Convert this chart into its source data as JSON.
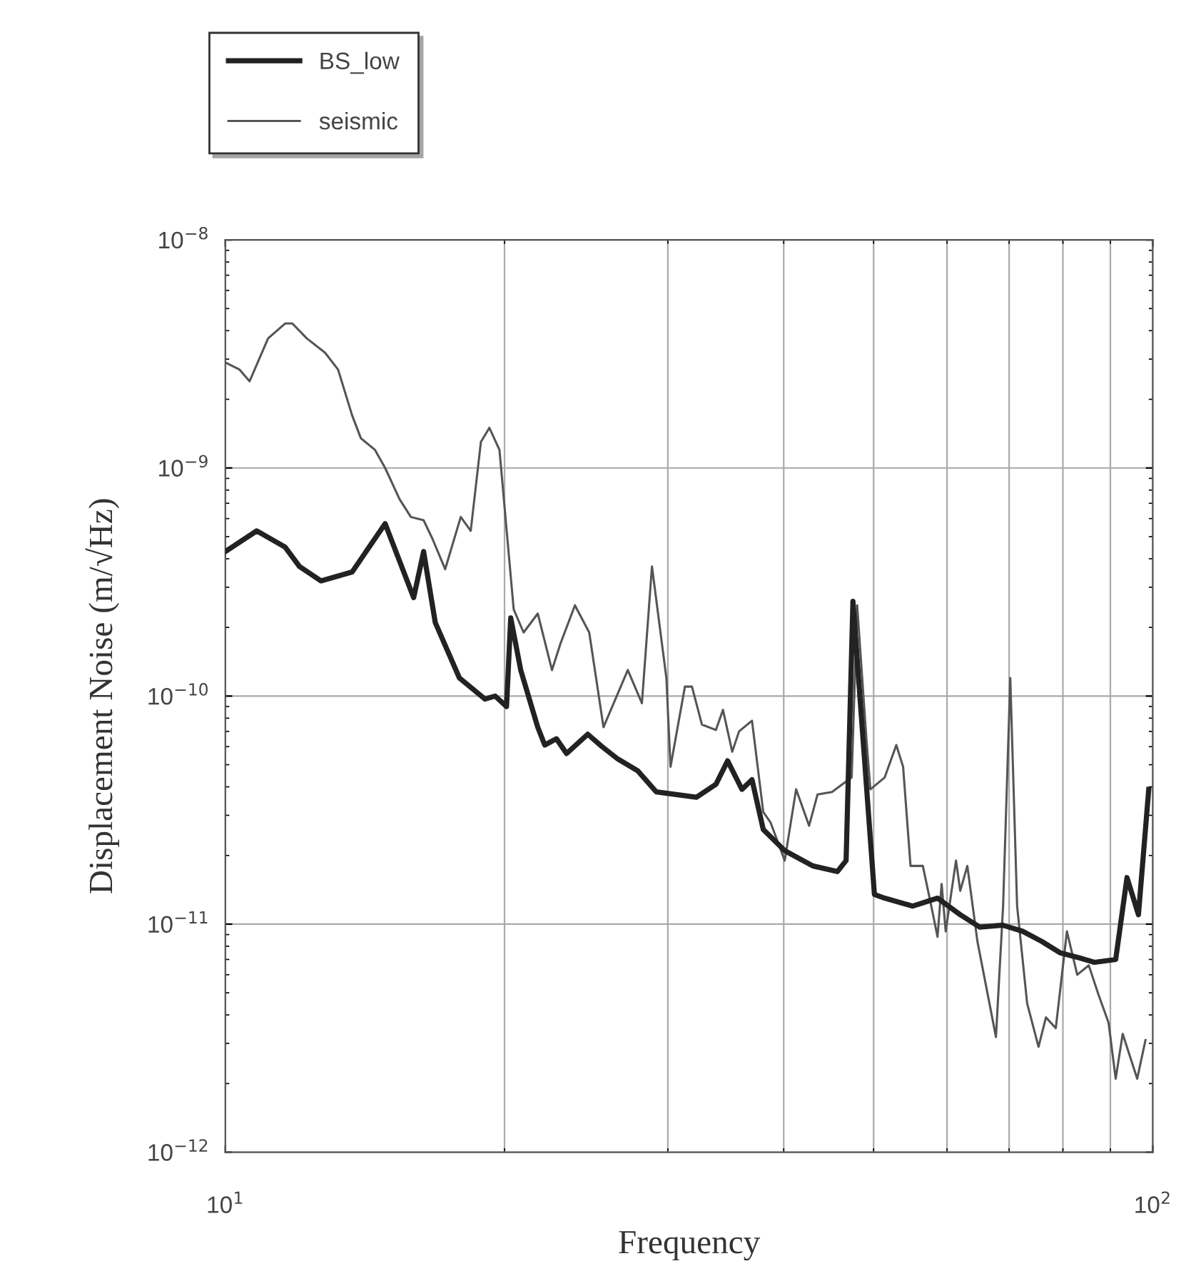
{
  "chart_data": {
    "type": "line",
    "xlabel": "Frequency",
    "ylabel": "Displacement Noise (m/√Hz)",
    "log": "xy",
    "grid": true,
    "legend": "top left",
    "xlim": [
      10,
      100
    ],
    "ylim": [
      1e-12,
      1e-08
    ],
    "xticks": [
      {
        "value": 10,
        "label": "10$^{1}$"
      },
      {
        "value": 100,
        "label": "10$^{2}$"
      }
    ],
    "yticks": [
      {
        "value": 1e-12,
        "label": "10$^{−12}$"
      },
      {
        "value": 1e-11,
        "label": "10$^{−11}$"
      },
      {
        "value": 1e-10,
        "label": "10$^{−10}$"
      },
      {
        "value": 1e-09,
        "label": "10$^{−9}$"
      },
      {
        "value": 1e-08,
        "label": "10$^{−8}$"
      }
    ],
    "series": [
      {
        "name": "BS_low",
        "color": "#222222",
        "x": [
          10.0,
          10.81,
          11.6,
          12.02,
          12.68,
          13.7,
          14.87,
          15.96,
          16.36,
          16.84,
          17.88,
          19.05,
          19.54,
          20.1,
          20.31,
          20.82,
          21.72,
          22.1,
          22.75,
          23.33,
          24.59,
          25.48,
          26.49,
          27.84,
          29.15,
          32.2,
          33.8,
          34.8,
          36.06,
          36.97,
          38.02,
          40.1,
          43.0,
          45.7,
          46.7,
          47.5,
          50.1,
          51.4,
          55.1,
          58.6,
          62.0,
          65.1,
          68.9,
          72.4,
          75.9,
          79.4,
          83.5,
          86.5,
          91.2,
          93.8,
          96.5,
          99.0
        ],
        "values": [
          4.3e-10,
          5.3e-10,
          4.5e-10,
          3.7e-10,
          3.2e-10,
          3.5e-10,
          5.7e-10,
          2.7e-10,
          4.3e-10,
          2.1e-10,
          1.2e-10,
          9.7e-11,
          1e-10,
          9e-11,
          2.2e-10,
          1.3e-10,
          7.3e-11,
          6.1e-11,
          6.5e-11,
          5.6e-11,
          6.8e-11,
          6e-11,
          5.3e-11,
          4.7e-11,
          3.8e-11,
          3.6e-11,
          4.1e-11,
          5.2e-11,
          3.9e-11,
          4.3e-11,
          2.6e-11,
          2.1e-11,
          1.8e-11,
          1.7e-11,
          1.9e-11,
          2.6e-10,
          1.35e-11,
          1.3e-11,
          1.2e-11,
          1.3e-11,
          1.1e-11,
          9.7e-12,
          9.9e-12,
          9.3e-12,
          8.4e-12,
          7.5e-12,
          7.1e-12,
          6.8e-12,
          7e-12,
          1.6e-11,
          1.1e-11,
          3.9e-11
        ]
      },
      {
        "name": "seismic",
        "color": "#555555",
        "x": [
          10.0,
          10.36,
          10.62,
          11.12,
          11.6,
          11.81,
          12.24,
          12.81,
          13.23,
          13.7,
          14.0,
          14.5,
          14.87,
          15.41,
          15.85,
          16.36,
          16.72,
          17.26,
          17.94,
          18.39,
          18.86,
          19.26,
          19.75,
          20.46,
          20.97,
          21.72,
          22.5,
          22.98,
          23.82,
          24.68,
          25.57,
          27.16,
          28.13,
          28.84,
          29.89,
          30.2,
          31.3,
          31.85,
          32.65,
          33.8,
          34.4,
          35.2,
          35.8,
          36.97,
          38.02,
          38.7,
          40.1,
          41.25,
          42.6,
          43.5,
          45.1,
          47.35,
          48.0,
          49.1,
          49.6,
          51.4,
          52.9,
          53.8,
          54.8,
          56.5,
          57.7,
          58.6,
          59.2,
          59.8,
          61.35,
          62.0,
          63.1,
          64.7,
          67.75,
          68.96,
          70.2,
          71.4,
          73.2,
          75.3,
          76.7,
          78.6,
          80.8,
          82.9,
          85.3,
          87.4,
          89.6,
          91.2,
          92.8,
          96.2,
          98.2
        ],
        "values": [
          2.9e-09,
          2.7e-09,
          2.4e-09,
          3.7e-09,
          4.3e-09,
          4.3e-09,
          3.7e-09,
          3.2e-09,
          2.7e-09,
          1.7e-09,
          1.35e-09,
          1.2e-09,
          1e-09,
          7.3e-10,
          6.1e-10,
          5.9e-10,
          4.9e-10,
          3.6e-10,
          6.1e-10,
          5.3e-10,
          1.3e-09,
          1.5e-09,
          1.2e-09,
          2.4e-10,
          1.9e-10,
          2.3e-10,
          1.3e-10,
          1.7e-10,
          2.5e-10,
          1.9e-10,
          7.3e-11,
          1.3e-10,
          9.3e-11,
          3.7e-10,
          1.2e-10,
          4.9e-11,
          1.1e-10,
          1.1e-10,
          7.5e-11,
          7.1e-11,
          8.7e-11,
          5.7e-11,
          7e-11,
          7.8e-11,
          3.1e-11,
          2.8e-11,
          1.9e-11,
          3.9e-11,
          2.7e-11,
          3.7e-11,
          3.8e-11,
          4.4e-11,
          2.5e-10,
          6.6e-11,
          3.9e-11,
          4.4e-11,
          6.1e-11,
          4.9e-11,
          1.8e-11,
          1.8e-11,
          1.2e-11,
          8.8e-12,
          1.5e-11,
          9.3e-12,
          1.9e-11,
          1.4e-11,
          1.8e-11,
          8.4e-12,
          3.2e-12,
          1.2e-11,
          1.2e-10,
          1.2e-11,
          4.5e-12,
          2.9e-12,
          3.9e-12,
          3.5e-12,
          9.3e-12,
          6e-12,
          6.6e-12,
          4.9e-12,
          3.7e-12,
          2.1e-12,
          3.3e-12,
          2.1e-12,
          3.1e-12
        ]
      }
    ]
  }
}
